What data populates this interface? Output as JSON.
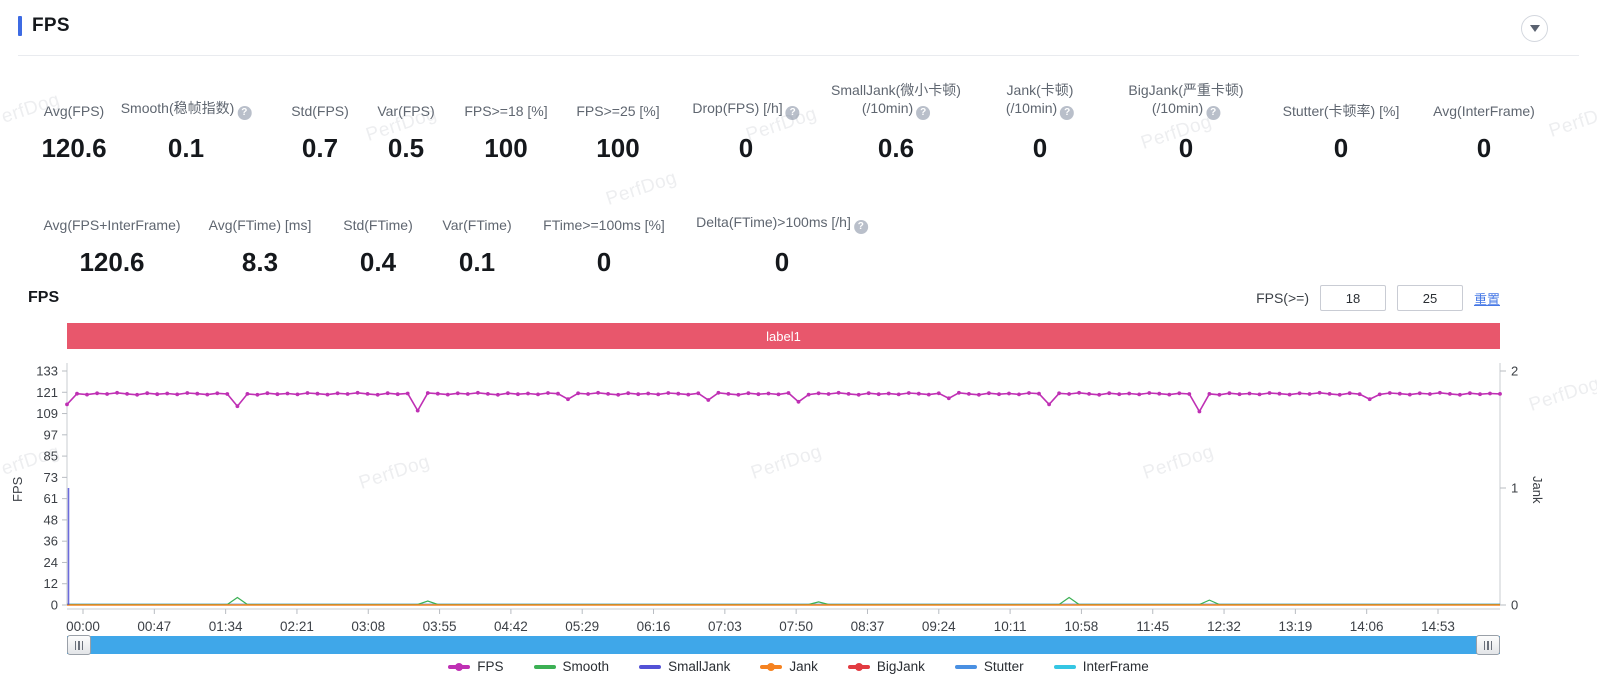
{
  "header": {
    "title": "FPS"
  },
  "watermark": "PerfDog",
  "stats_row1": [
    {
      "label": "Avg(FPS)",
      "value": "120.6",
      "help": false
    },
    {
      "label": "Smooth(稳帧指数)",
      "value": "0.1",
      "help": true
    },
    {
      "label": "Std(FPS)",
      "value": "0.7",
      "help": false
    },
    {
      "label": "Var(FPS)",
      "value": "0.5",
      "help": false
    },
    {
      "label": "FPS>=18 [%]",
      "value": "100",
      "help": false
    },
    {
      "label": "FPS>=25 [%]",
      "value": "100",
      "help": false
    },
    {
      "label": "Drop(FPS) [/h]",
      "value": "0",
      "help": true
    },
    {
      "label": "SmallJank(微小卡顿)",
      "label2": "(/10min)",
      "value": "0.6",
      "help": true
    },
    {
      "label": "Jank(卡顿)",
      "label2": "(/10min)",
      "value": "0",
      "help": true
    },
    {
      "label": "BigJank(严重卡顿)",
      "label2": "(/10min)",
      "value": "0",
      "help": true
    },
    {
      "label": "Stutter(卡顿率) [%]",
      "value": "0",
      "help": false
    },
    {
      "label": "Avg(InterFrame)",
      "value": "0",
      "help": false
    }
  ],
  "stats_row2": [
    {
      "label": "Avg(FPS+InterFrame)",
      "value": "120.6",
      "help": false
    },
    {
      "label": "Avg(FTime) [ms]",
      "value": "8.3",
      "help": false
    },
    {
      "label": "Std(FTime)",
      "value": "0.4",
      "help": false
    },
    {
      "label": "Var(FTime)",
      "value": "0.1",
      "help": false
    },
    {
      "label": "FTime>=100ms [%]",
      "value": "0",
      "help": false
    },
    {
      "label": "Delta(FTime)>100ms [/h]",
      "value": "0",
      "help": true
    }
  ],
  "chart": {
    "title": "FPS",
    "filter_label": "FPS(>=)",
    "threshold1": "18",
    "threshold2": "25",
    "reset_label": "重置",
    "banner_label": "label1"
  },
  "colors": {
    "fps": "#bf30b4",
    "smooth": "#3cb054",
    "smalljank": "#5352d6",
    "jank": "#f58220",
    "bigjank": "#e23b41",
    "stutter": "#4a90e2",
    "interframe": "#35c6e3",
    "banner": "#e8576c",
    "accent": "#3d6be3",
    "link": "#4678e6",
    "scrollbar": "#3fa7e9"
  },
  "chart_data": {
    "type": "line",
    "title": "FPS",
    "left_axis": {
      "label": "FPS",
      "ticks": [
        133,
        121,
        109,
        97,
        85,
        73,
        61,
        48,
        36,
        24,
        12,
        0
      ],
      "range": [
        0,
        133
      ]
    },
    "right_axis": {
      "label": "Jank",
      "ticks": [
        2,
        1,
        0
      ],
      "range": [
        0,
        2
      ]
    },
    "x_ticks": [
      "00:00",
      "00:47",
      "01:34",
      "02:21",
      "03:08",
      "03:55",
      "04:42",
      "05:29",
      "06:16",
      "07:03",
      "07:50",
      "08:37",
      "09:24",
      "10:11",
      "10:58",
      "11:45",
      "12:32",
      "13:19",
      "14:06",
      "14:53"
    ],
    "grid": false,
    "legend_position": "bottom",
    "series": [
      {
        "name": "FPS",
        "axis": "left",
        "values": [
          114,
          120.1,
          119.6,
          120.3,
          119.9,
          120.6,
          120,
          119.5,
          120.4,
          119.8,
          120.2,
          119.7,
          120.5,
          120.1,
          119.6,
          120.3,
          119.9,
          113,
          120,
          119.5,
          120.4,
          119.8,
          120.2,
          119.7,
          120.5,
          120.1,
          119.6,
          120.3,
          119.9,
          120.6,
          120,
          119.5,
          120.4,
          119.8,
          120.2,
          110.5,
          120.5,
          120.1,
          119.6,
          120.3,
          119.9,
          120.6,
          120,
          119.5,
          120.4,
          119.8,
          120.2,
          119.7,
          120.5,
          120.1,
          117,
          120.3,
          119.9,
          120.6,
          120,
          119.5,
          120.4,
          119.8,
          120.2,
          119.7,
          120.5,
          120.1,
          119.6,
          120.3,
          116.5,
          120.6,
          120,
          119.5,
          120.4,
          119.8,
          120.2,
          119.7,
          120.5,
          115.5,
          119.6,
          120.3,
          119.9,
          120.6,
          120,
          119.5,
          120.4,
          119.8,
          120.2,
          119.7,
          120.5,
          120.1,
          119.6,
          120.3,
          117.5,
          120.6,
          120,
          119.5,
          120.4,
          119.8,
          120.2,
          119.7,
          120.5,
          120.1,
          114,
          120.3,
          119.9,
          120.6,
          120,
          119.5,
          120.4,
          119.8,
          120.2,
          119.7,
          120.5,
          120.1,
          119.6,
          120.3,
          119.9,
          110,
          120,
          119.5,
          120.4,
          119.8,
          120.2,
          119.7,
          120.5,
          120.1,
          119.6,
          120.3,
          119.9,
          120.6,
          120,
          119.5,
          120.4,
          119.8,
          117,
          119.7,
          120.5,
          120.1,
          119.6,
          120.3,
          119.9,
          120.6,
          120,
          119.5,
          120.4,
          119.8,
          120.2,
          120
        ]
      },
      {
        "name": "Smooth",
        "axis": "left",
        "base": 0,
        "spikes": [
          [
            17,
            4
          ],
          [
            36,
            2
          ],
          [
            75,
            1.5
          ],
          [
            100,
            4
          ],
          [
            114,
            2.5
          ]
        ]
      },
      {
        "name": "SmallJank",
        "axis": "right",
        "base": 0,
        "spikes": [
          [
            0,
            1
          ]
        ]
      },
      {
        "name": "Jank",
        "axis": "right",
        "base": 0,
        "spikes": []
      },
      {
        "name": "BigJank",
        "axis": "right",
        "base": 0,
        "spikes": []
      },
      {
        "name": "Stutter",
        "axis": "right",
        "base": 0,
        "spikes": []
      },
      {
        "name": "InterFrame",
        "axis": "left",
        "base": 0,
        "spikes": []
      }
    ]
  },
  "legend": [
    {
      "name": "FPS",
      "color": "#bf30b4",
      "dot": true
    },
    {
      "name": "Smooth",
      "color": "#3cb054",
      "dot": false
    },
    {
      "name": "SmallJank",
      "color": "#5352d6",
      "dot": false
    },
    {
      "name": "Jank",
      "color": "#f58220",
      "dot": true
    },
    {
      "name": "BigJank",
      "color": "#e23b41",
      "dot": true
    },
    {
      "name": "Stutter",
      "color": "#4a90e2",
      "dot": false
    },
    {
      "name": "InterFrame",
      "color": "#35c6e3",
      "dot": false
    }
  ]
}
